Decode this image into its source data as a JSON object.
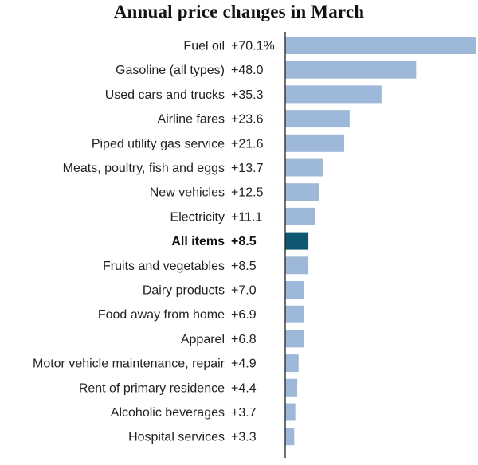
{
  "chart_data": {
    "type": "bar",
    "orientation": "horizontal",
    "title": "Annual price changes in March",
    "unit_suffix_first": "%",
    "categories": [
      "Fuel oil",
      "Gasoline (all types)",
      "Used cars and trucks",
      "Airline fares",
      "Piped utility gas service",
      "Meats, poultry, fish and eggs",
      "New vehicles",
      "Electricity",
      "All items",
      "Fruits and vegetables",
      "Dairy products",
      "Food away from home",
      "Apparel",
      "Motor vehicle maintenance, repair",
      "Rent of primary residence",
      "Alcoholic beverages",
      "Hospital services"
    ],
    "values": [
      70.1,
      48.0,
      35.3,
      23.6,
      21.6,
      13.7,
      12.5,
      11.1,
      8.5,
      8.5,
      7.0,
      6.9,
      6.8,
      4.9,
      4.4,
      3.7,
      3.3
    ],
    "value_labels": [
      "+70.1%",
      "+48.0",
      "+35.3",
      "+23.6",
      "+21.6",
      "+13.7",
      "+12.5",
      "+11.1",
      "+8.5",
      "+8.5",
      "+7.0",
      "+6.9",
      "+6.8",
      "+4.9",
      "+4.4",
      "+3.7",
      "+3.3"
    ],
    "highlight": "All items",
    "xlim": [
      0,
      70.1
    ],
    "colors": {
      "bar": "#9db8d9",
      "highlight": "#0f5670",
      "axis": "#222222"
    }
  }
}
